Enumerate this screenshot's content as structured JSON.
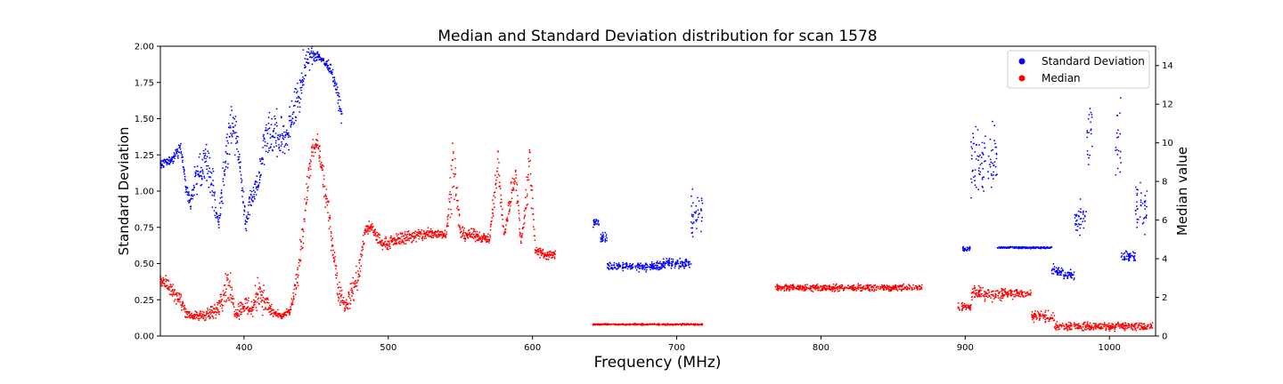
{
  "chart_data": {
    "type": "scatter",
    "title": "Median and Standard Deviation distribution for scan 1578",
    "xlabel": "Frequency (MHz)",
    "ylabel_left": "Standard Deviation",
    "ylabel_right": "Median value",
    "xlim": [
      342,
      1032
    ],
    "ylim_left": [
      0,
      2.0
    ],
    "ylim_right": [
      0,
      15
    ],
    "x_ticks": [
      400,
      500,
      600,
      700,
      800,
      900,
      1000
    ],
    "y_left_ticks": [
      0.0,
      0.25,
      0.5,
      0.75,
      1.0,
      1.25,
      1.5,
      1.75,
      2.0
    ],
    "y_left_tick_labels": [
      "0.00",
      "0.25",
      "0.50",
      "0.75",
      "1.00",
      "1.25",
      "1.50",
      "1.75",
      "2.00"
    ],
    "y_right_ticks": [
      0,
      2,
      4,
      6,
      8,
      10,
      12,
      14
    ],
    "grid": false,
    "legend_position": "top-right",
    "series": [
      {
        "name": "Standard Deviation",
        "axis": "left",
        "color": "#0000ff",
        "profile": [
          [
            342,
            1.18,
            0.05
          ],
          [
            350,
            1.22,
            0.05
          ],
          [
            356,
            1.3,
            0.06
          ],
          [
            360,
            1.0,
            0.08
          ],
          [
            363,
            0.92,
            0.05
          ],
          [
            366,
            1.1,
            0.15
          ],
          [
            375,
            1.2,
            0.25
          ],
          [
            382,
            0.8,
            0.15
          ],
          [
            386,
            1.1,
            0.25
          ],
          [
            391,
            1.5,
            0.25
          ],
          [
            395,
            1.35,
            0.2
          ],
          [
            398,
            1.1,
            0.1
          ],
          [
            401,
            0.75,
            0.15
          ],
          [
            404,
            0.95,
            0.1
          ],
          [
            407,
            1.0,
            0.15
          ],
          [
            410,
            1.1,
            0.15
          ],
          [
            415,
            1.4,
            0.2
          ],
          [
            420,
            1.4,
            0.25
          ],
          [
            425,
            1.35,
            0.2
          ],
          [
            430,
            1.4,
            0.2
          ],
          [
            434,
            1.55,
            0.2
          ],
          [
            438,
            1.65,
            0.2
          ],
          [
            442,
            1.85,
            0.2
          ],
          [
            446,
            1.95,
            0.1
          ],
          [
            452,
            1.93,
            0.05
          ],
          [
            456,
            1.88,
            0.05
          ],
          [
            460,
            1.85,
            0.05
          ],
          [
            464,
            1.7,
            0.08
          ],
          [
            468,
            1.5,
            0.08
          ]
        ],
        "clusters": [
          [
            642,
            646,
            0.78,
            0.05
          ],
          [
            647,
            652,
            0.68,
            0.06
          ],
          [
            652,
            690,
            0.48,
            0.04
          ],
          [
            690,
            710,
            0.5,
            0.05
          ],
          [
            710,
            718,
            0.85,
            0.25
          ],
          [
            898,
            904,
            0.6,
            0.02
          ],
          [
            904,
            922,
            1.2,
            0.35
          ],
          [
            922,
            960,
            0.61,
            0.01
          ],
          [
            960,
            968,
            0.45,
            0.05
          ],
          [
            968,
            976,
            0.42,
            0.05
          ],
          [
            976,
            984,
            0.8,
            0.15
          ],
          [
            984,
            988,
            1.4,
            0.3
          ],
          [
            1004,
            1008,
            1.4,
            0.4
          ],
          [
            1008,
            1018,
            0.55,
            0.05
          ],
          [
            1018,
            1026,
            0.9,
            0.3
          ]
        ],
        "range_km": [
          [
            342,
            470
          ],
          [
            642,
            718
          ],
          [
            898,
            1030
          ]
        ]
      },
      {
        "name": "Median",
        "axis": "right",
        "color": "#ff0000",
        "profile": [
          [
            342,
            3.0,
            0.6
          ],
          [
            350,
            2.4,
            0.6
          ],
          [
            356,
            1.8,
            0.6
          ],
          [
            360,
            1.2,
            0.4
          ],
          [
            365,
            1.0,
            0.3
          ],
          [
            380,
            1.2,
            0.6
          ],
          [
            384,
            2.0,
            1.0
          ],
          [
            389,
            2.8,
            1.4
          ],
          [
            394,
            1.2,
            0.5
          ],
          [
            400,
            1.6,
            0.8
          ],
          [
            406,
            1.4,
            0.8
          ],
          [
            410,
            2.5,
            1.5
          ],
          [
            414,
            1.8,
            1.0
          ],
          [
            420,
            1.2,
            0.4
          ],
          [
            426,
            1.0,
            0.2
          ],
          [
            432,
            1.3,
            0.3
          ],
          [
            437,
            3.0,
            1.0
          ],
          [
            442,
            6.5,
            1.5
          ],
          [
            447,
            9.5,
            0.8
          ],
          [
            451,
            10.0,
            0.6
          ],
          [
            455,
            8.0,
            1.0
          ],
          [
            460,
            5.5,
            1.0
          ],
          [
            465,
            2.5,
            1.0
          ],
          [
            470,
            1.5,
            0.6
          ],
          [
            476,
            2.5,
            1.0
          ],
          [
            480,
            3.5,
            1.2
          ],
          [
            484,
            5.5,
            0.4
          ],
          [
            488,
            5.6,
            0.5
          ],
          [
            495,
            4.8,
            0.5
          ],
          [
            500,
            4.8,
            0.4
          ],
          [
            510,
            5.1,
            0.5
          ],
          [
            520,
            5.2,
            0.5
          ],
          [
            530,
            5.3,
            0.5
          ],
          [
            540,
            5.3,
            0.3
          ],
          [
            545,
            9.0,
            2.5
          ],
          [
            550,
            5.3,
            0.5
          ],
          [
            560,
            5.2,
            0.4
          ],
          [
            570,
            5.0,
            0.3
          ],
          [
            576,
            9.0,
            1.5
          ],
          [
            580,
            5.2,
            0.4
          ],
          [
            588,
            8.5,
            1.5
          ],
          [
            592,
            4.7,
            0.3
          ],
          [
            598,
            9.0,
            2.0
          ],
          [
            602,
            4.4,
            0.5
          ],
          [
            610,
            4.2,
            0.3
          ],
          [
            616,
            4.2,
            0.3
          ]
        ],
        "clusters": [
          [
            642,
            718,
            0.6,
            0.06
          ],
          [
            768,
            870,
            2.5,
            0.25
          ],
          [
            895,
            904,
            1.5,
            0.3
          ],
          [
            904,
            926,
            2.2,
            0.5
          ],
          [
            926,
            946,
            2.2,
            0.4
          ],
          [
            946,
            962,
            1.0,
            0.4
          ],
          [
            962,
            1030,
            0.5,
            0.3
          ]
        ],
        "range_km": [
          [
            342,
            620
          ],
          [
            642,
            720
          ],
          [
            768,
            870
          ],
          [
            895,
            1030
          ]
        ]
      }
    ]
  }
}
